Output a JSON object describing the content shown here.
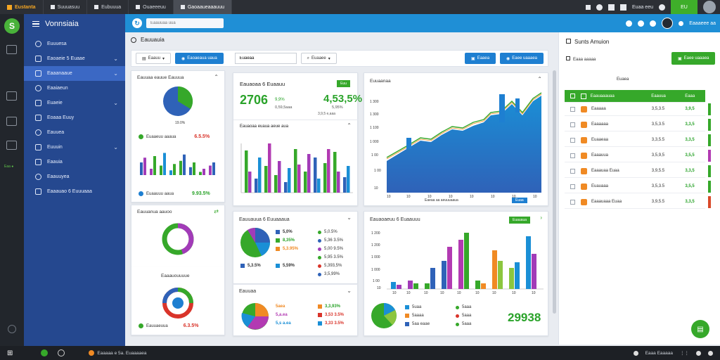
{
  "tabs": [
    "Eustanta",
    "Suuuasuu",
    "Eubuuua",
    "Ouaeeeuu",
    "Gaoaaueaaauuu"
  ],
  "topbar_right": {
    "user": "Euaa eeu",
    "flag": "EU"
  },
  "sidebar": {
    "title": "Vonnsiaia",
    "items": [
      {
        "label": "Euuuesa",
        "chevron": false,
        "active": false
      },
      {
        "label": "Eaoaeie 5 Euaae",
        "chevron": true,
        "active": false
      },
      {
        "label": "Eaaanaaue",
        "chevron": true,
        "active": true
      },
      {
        "label": "Eaaiaeun",
        "chevron": false,
        "active": false
      },
      {
        "label": "Euaeie",
        "chevron": true,
        "active": false
      },
      {
        "label": "Eoaaa Euuy",
        "chevron": false,
        "active": false
      },
      {
        "label": "Eauuea",
        "chevron": false,
        "active": false
      },
      {
        "label": "Euuuin",
        "chevron": true,
        "active": false
      },
      {
        "label": "Eaauia",
        "chevron": false,
        "active": false
      },
      {
        "label": "Eaauuyea",
        "chevron": false,
        "active": false
      },
      {
        "label": "Eaaauao 6 Euuuaaa",
        "chevron": false,
        "active": false
      }
    ]
  },
  "topbar": {
    "search_placeholder": "Eaauuaa uua",
    "right_label": "Eaaaeee aa"
  },
  "page": {
    "title": "Eauuauia"
  },
  "toolbar": {
    "select1": "Eaauu",
    "btn1": "Eaoaeaua uaua",
    "input1": "Euaeaa",
    "select2": "Euaaee",
    "btn2": "Eaaea",
    "btn3": "Eaee uaaaea"
  },
  "cards": {
    "c1": {
      "title": "Eauuaa eauue Eauuua",
      "pct": "19.0%",
      "legend1": "Euaaeuu aaaua",
      "val1": "6.5.5%",
      "legend2": "Euaauuu aaua",
      "val2": "9.93.5%",
      "bars": [
        [
          40,
          55
        ],
        [
          20,
          60
        ],
        [
          30,
          70
        ],
        [
          15,
          35
        ],
        [
          45,
          65
        ],
        [
          25,
          40
        ],
        [
          10,
          20
        ],
        [
          30,
          40
        ]
      ]
    },
    "c2": {
      "title": "Eauuanua aauoo",
      "legend": "Euaaeuuu aaaua",
      "val": "6.53%"
    },
    "c3": {
      "title": "Eaaauouuuue",
      "legend": "Eauuaeuua",
      "val": "6.3.5%"
    },
    "c4": {
      "title": "Eauaoaa 6 Euaauu",
      "badge": "Euu",
      "big1": "2706",
      "sub1a": "9,9%",
      "sub1b": "0,59,5aaa",
      "big2": "4,53,5%",
      "sub2a": "5,95%",
      "sub2b": "3,9,5 e,aaa",
      "sub_title": "Eauaoaa euaua aeue aua"
    },
    "c5": {
      "title": "Euuaanaa",
      "xlabel": "Eaeaa aa aeuuuaaua",
      "badge": "Euaa"
    },
    "c6": {
      "title": "Eauuauua 6 Euuaaaua",
      "legend": [
        {
          "l": "5,0%",
          "c": "#2f62b8"
        },
        {
          "l": "8,35%",
          "c": "#36a82a"
        },
        {
          "l": "5,3.95%",
          "c": "#f08a24"
        },
        {
          "l": "5,3.5%",
          "c": "#2f62b8"
        },
        {
          "l": "5,59%",
          "c": "#1a8fd6"
        }
      ],
      "rvals": [
        "5,0.5%",
        "5,36 3.5%",
        "5,00 9.5%",
        "5,95 3.5%",
        "5,393,5%",
        "3,5,99%"
      ]
    },
    "c7": {
      "title": "Eauuaa",
      "legend": [
        "5aea",
        "5,a.ea",
        "5,s a.ea"
      ],
      "rvals": [
        "3,3,93%",
        "3,53 3.5%",
        "3,33 3.5%"
      ]
    },
    "c8": {
      "title": "Eauaoaeuu 6 Euaauuu",
      "badge": "Euauaua",
      "legend": [
        "5uaa",
        "5aaaa",
        "5aa eaae"
      ],
      "rlegend": [
        "5aaa",
        "5aaa",
        "5aaa"
      ],
      "big": "29938"
    }
  },
  "right_panel": {
    "title": "Sunts Amuion",
    "btn": "Eaee uaaaea",
    "select": "Eaaa aaaaa",
    "input": "Euaea",
    "header": [
      "Eaauaaauaa",
      "Eaauua",
      "Eaaa"
    ],
    "rows": [
      {
        "name": "Eaaaaa",
        "v1": "3,5,3.5",
        "v2": "3,9,5",
        "bar": "#36a82a"
      },
      {
        "name": "Eaaaaaa",
        "v1": "3,5,3.5",
        "v2": "3,3,5",
        "bar": "#36a82a"
      },
      {
        "name": "Euaaeaa",
        "v1": "3,3,5.5",
        "v2": "3,3,5",
        "bar": "#36a82a"
      },
      {
        "name": "Eaaauua",
        "v1": "3,5,9,5",
        "v2": "3,5,5",
        "bar": "#b23ab2"
      },
      {
        "name": "Eaaauaa Euaa",
        "v1": "3,9,5.5",
        "v2": "3,3,5",
        "bar": "#36a82a"
      },
      {
        "name": "Euauaaa",
        "v1": "3,5,3.5",
        "v2": "3,5,5",
        "bar": "#36a82a"
      },
      {
        "name": "Eaaauaaa Euaa",
        "v1": "3,9,5.5",
        "v2": "3,3,5",
        "bar": "#d94a2a"
      }
    ]
  },
  "statusbar": {
    "center": "Eaaaaa e 5a. Euaaaaea",
    "right": "Eaaa  Eaaaaa"
  },
  "colors": {
    "green": "#36a82a",
    "blue": "#2f62b8",
    "purple": "#a23bb8",
    "orange": "#f08a24",
    "lightblue": "#1a8fd6"
  }
}
